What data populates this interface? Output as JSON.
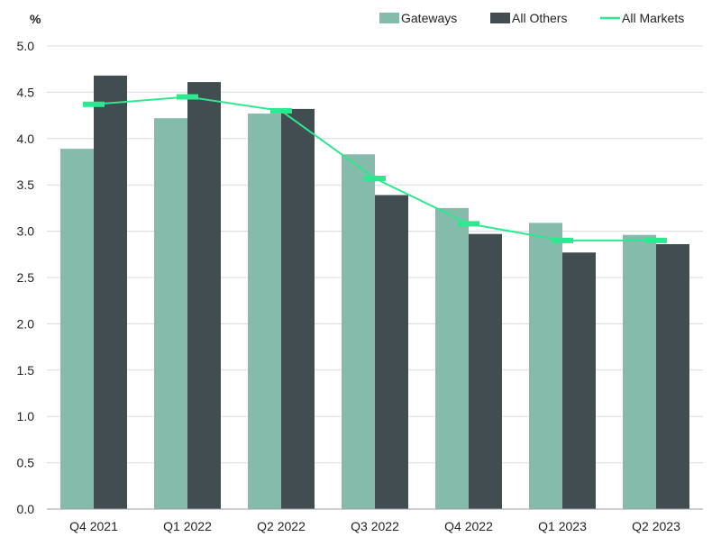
{
  "chart_data": {
    "type": "bar",
    "unit_label": "%",
    "categories": [
      "Q4 2021",
      "Q1 2022",
      "Q2 2022",
      "Q3 2022",
      "Q4 2022",
      "Q1 2023",
      "Q2 2023"
    ],
    "series": [
      {
        "name": "Gateways",
        "kind": "bar",
        "color": "#84bbaa",
        "values": [
          3.89,
          4.22,
          4.27,
          3.83,
          3.25,
          3.09,
          2.96
        ]
      },
      {
        "name": "All Others",
        "kind": "bar",
        "color": "#414d50",
        "values": [
          4.68,
          4.61,
          4.32,
          3.39,
          2.97,
          2.77,
          2.86
        ]
      },
      {
        "name": "All Markets",
        "kind": "line",
        "color": "#2ee88f",
        "values": [
          4.37,
          4.45,
          4.3,
          3.57,
          3.08,
          2.9,
          2.9
        ]
      }
    ],
    "ylim": [
      0,
      5
    ],
    "yticks": [
      "0.0",
      "0.5",
      "1.0",
      "1.5",
      "2.0",
      "2.5",
      "3.0",
      "3.5",
      "4.0",
      "4.5",
      "5.0"
    ],
    "grid": true,
    "legend_position": "top-right"
  }
}
